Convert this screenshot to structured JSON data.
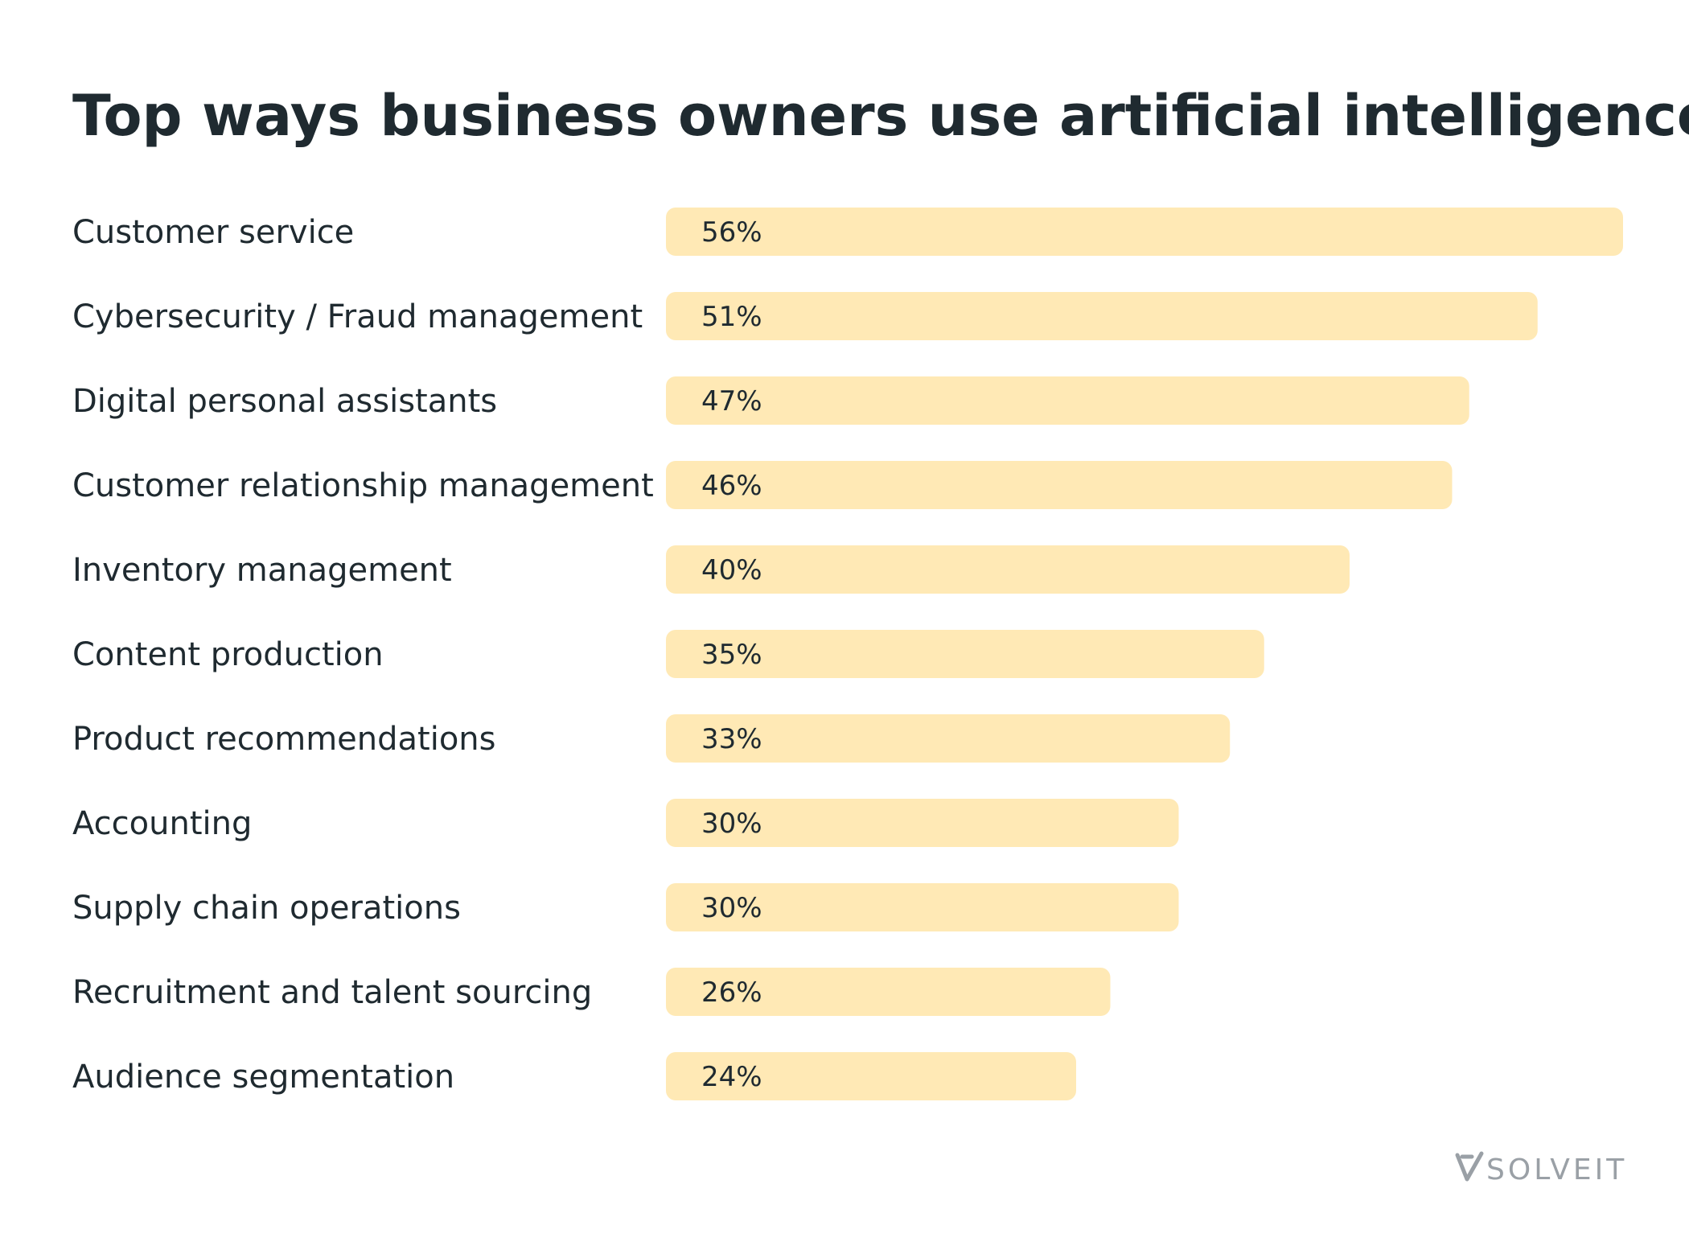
{
  "chart_data": {
    "type": "bar",
    "orientation": "horizontal",
    "title": "Top ways business owners use artificial intelligence",
    "xlabel": "",
    "ylabel": "",
    "value_suffix": "%",
    "xlim": [
      0,
      56
    ],
    "grid": false,
    "categories": [
      "Customer service",
      "Cybersecurity / Fraud management",
      "Digital personal assistants",
      "Customer relationship management",
      "Inventory management",
      "Content production",
      "Product recommendations",
      "Accounting",
      "Supply chain operations",
      "Recruitment and talent sourcing",
      "Audience segmentation"
    ],
    "values": [
      56,
      51,
      47,
      46,
      40,
      35,
      33,
      30,
      30,
      26,
      24
    ],
    "value_labels": [
      "56%",
      "51%",
      "47%",
      "46%",
      "40%",
      "35%",
      "33%",
      "30%",
      "30%",
      "26%",
      "24%"
    ]
  },
  "colors": {
    "bar": "#ffe9b5",
    "text": "#1f2a30",
    "logo": "#9aa0a6"
  },
  "brand": {
    "logo_text": "SOLVEIT",
    "logo_icon": "solveit-check-icon"
  }
}
